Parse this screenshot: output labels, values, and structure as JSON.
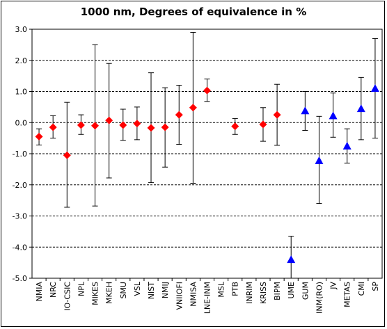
{
  "chart_data": {
    "type": "scatter",
    "title": "1000 nm, Degrees of equivalence in %",
    "xlabel": "",
    "ylabel": "",
    "ylim": [
      -5.0,
      3.0
    ],
    "yticks": [
      "3.0",
      "2.0",
      "1.0",
      "0.0",
      "-1.0",
      "-2.0",
      "-3.0",
      "-4.0",
      "-5.0"
    ],
    "ytick_values": [
      3,
      2,
      1,
      0,
      -1,
      -2,
      -3,
      -4,
      -5
    ],
    "grid": "horizontal dashed",
    "categories": [
      "NMIA",
      "NRC",
      "IO-CSIC",
      "NPL",
      "MIKES",
      "MKEH",
      "SMU",
      "VSL",
      "NIST",
      "NMIJ",
      "VNIIOFI",
      "NMISA",
      "LNE-INM",
      "MSL",
      "PTB",
      "INRIM",
      "KRISS",
      "BIPM",
      "UME",
      "GUM",
      "INM(RO)",
      "JV",
      "METAS",
      "CMI",
      "SP"
    ],
    "series": [
      {
        "marker": "diamond",
        "color": "#ff0000",
        "points": [
          {
            "category": "NMIA",
            "value": -0.45,
            "low": -0.72,
            "high": -0.2
          },
          {
            "category": "NRC",
            "value": -0.15,
            "low": -0.5,
            "high": 0.22
          },
          {
            "category": "IO-CSIC",
            "value": -1.05,
            "low": -2.72,
            "high": 0.65
          },
          {
            "category": "NPL",
            "value": -0.08,
            "low": -0.38,
            "high": 0.25
          },
          {
            "category": "MIKES",
            "value": -0.1,
            "low": -2.68,
            "high": 2.5
          },
          {
            "category": "MKEH",
            "value": 0.07,
            "low": -1.78,
            "high": 1.9
          },
          {
            "category": "SMU",
            "value": -0.08,
            "low": -0.57,
            "high": 0.43
          },
          {
            "category": "VSL",
            "value": -0.03,
            "low": -0.55,
            "high": 0.5
          },
          {
            "category": "NIST",
            "value": -0.17,
            "low": -1.93,
            "high": 1.6
          },
          {
            "category": "NMIJ",
            "value": -0.15,
            "low": -1.43,
            "high": 1.12
          },
          {
            "category": "VNIIOFI",
            "value": 0.25,
            "low": -0.7,
            "high": 1.2
          },
          {
            "category": "NMISA",
            "value": 0.48,
            "low": -1.95,
            "high": 2.9
          },
          {
            "category": "LNE-INM",
            "value": 1.03,
            "low": 0.68,
            "high": 1.4
          },
          {
            "category": "PTB",
            "value": -0.12,
            "low": -0.38,
            "high": 0.13
          },
          {
            "category": "KRISS",
            "value": -0.06,
            "low": -0.6,
            "high": 0.48
          },
          {
            "category": "BIPM",
            "value": 0.25,
            "low": -0.73,
            "high": 1.23
          }
        ]
      },
      {
        "marker": "triangle",
        "color": "#0000ff",
        "points": [
          {
            "category": "UME",
            "value": -4.4,
            "low": -5.05,
            "high": -3.65
          },
          {
            "category": "GUM",
            "value": 0.38,
            "low": -0.25,
            "high": 1.0
          },
          {
            "category": "INM(RO)",
            "value": -1.22,
            "low": -2.6,
            "high": 0.2
          },
          {
            "category": "JV",
            "value": 0.22,
            "low": -0.47,
            "high": 0.95
          },
          {
            "category": "METAS",
            "value": -0.75,
            "low": -1.3,
            "high": -0.2
          },
          {
            "category": "CMI",
            "value": 0.45,
            "low": -0.55,
            "high": 1.45
          },
          {
            "category": "SP",
            "value": 1.1,
            "low": -0.5,
            "high": 2.7
          }
        ]
      }
    ]
  }
}
